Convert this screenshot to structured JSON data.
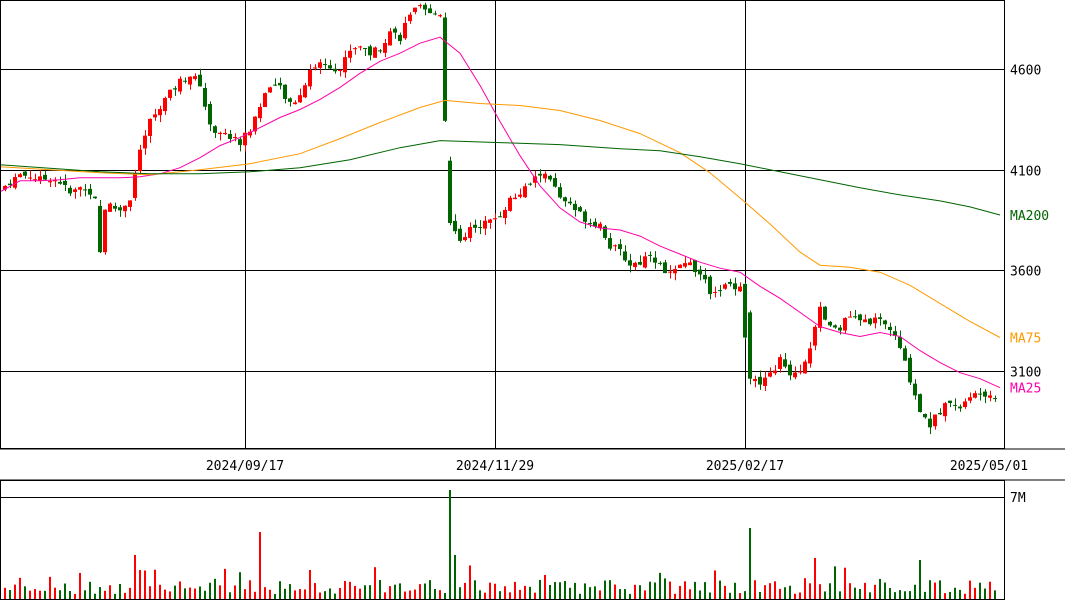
{
  "chart_data": [
    {
      "type": "candlestick",
      "panel": "price",
      "x_labels": [
        "2024/09/17",
        "2024/11/29",
        "2025/02/17",
        "2025/05/01"
      ],
      "y_ticks": [
        4600,
        4100,
        3600,
        3100
      ],
      "ylim": [
        2715,
        4940
      ],
      "grid": true,
      "colors": {
        "up": "#ff0000",
        "down": "#006400"
      },
      "series": [
        {
          "name": "MA25",
          "color": "#ff00aa",
          "values": [
            [
              0,
              3990
            ],
            [
              20,
              4045
            ],
            [
              40,
              4045
            ],
            [
              60,
              4050
            ],
            [
              80,
              4060
            ],
            [
              100,
              4060
            ],
            [
              120,
              4060
            ],
            [
              140,
              4065
            ],
            [
              160,
              4080
            ],
            [
              180,
              4110
            ],
            [
              200,
              4160
            ],
            [
              220,
              4220
            ],
            [
              240,
              4260
            ],
            [
              260,
              4310
            ],
            [
              280,
              4360
            ],
            [
              300,
              4400
            ],
            [
              320,
              4450
            ],
            [
              340,
              4510
            ],
            [
              360,
              4580
            ],
            [
              380,
              4640
            ],
            [
              400,
              4680
            ],
            [
              420,
              4730
            ],
            [
              440,
              4760
            ],
            [
              460,
              4680
            ],
            [
              480,
              4520
            ],
            [
              500,
              4340
            ],
            [
              520,
              4170
            ],
            [
              540,
              4020
            ],
            [
              560,
              3910
            ],
            [
              580,
              3840
            ],
            [
              600,
              3810
            ],
            [
              620,
              3800
            ],
            [
              640,
              3770
            ],
            [
              660,
              3720
            ],
            [
              680,
              3680
            ],
            [
              700,
              3640
            ],
            [
              720,
              3610
            ],
            [
              740,
              3590
            ],
            [
              760,
              3520
            ],
            [
              780,
              3460
            ],
            [
              800,
              3390
            ],
            [
              820,
              3320
            ],
            [
              840,
              3290
            ],
            [
              860,
              3270
            ],
            [
              880,
              3290
            ],
            [
              900,
              3270
            ],
            [
              920,
              3200
            ],
            [
              940,
              3140
            ],
            [
              960,
              3090
            ],
            [
              980,
              3060
            ],
            [
              1000,
              3015
            ]
          ]
        },
        {
          "name": "MA75",
          "color": "#ff9900",
          "values": [
            [
              0,
              4115
            ],
            [
              100,
              4085
            ],
            [
              150,
              4075
            ],
            [
              200,
              4100
            ],
            [
              250,
              4130
            ],
            [
              300,
              4180
            ],
            [
              340,
              4255
            ],
            [
              380,
              4335
            ],
            [
              420,
              4410
            ],
            [
              445,
              4445
            ],
            [
              480,
              4430
            ],
            [
              520,
              4420
            ],
            [
              560,
              4395
            ],
            [
              600,
              4345
            ],
            [
              640,
              4280
            ],
            [
              680,
              4185
            ],
            [
              710,
              4085
            ],
            [
              740,
              3960
            ],
            [
              770,
              3830
            ],
            [
              800,
              3690
            ],
            [
              820,
              3625
            ],
            [
              850,
              3615
            ],
            [
              880,
              3590
            ],
            [
              910,
              3525
            ],
            [
              940,
              3435
            ],
            [
              970,
              3345
            ],
            [
              1000,
              3265
            ]
          ]
        },
        {
          "name": "MA200",
          "color": "#006400",
          "values": [
            [
              0,
              4125
            ],
            [
              100,
              4090
            ],
            [
              150,
              4080
            ],
            [
              200,
              4080
            ],
            [
              250,
              4090
            ],
            [
              300,
              4110
            ],
            [
              350,
              4150
            ],
            [
              400,
              4210
            ],
            [
              440,
              4245
            ],
            [
              500,
              4235
            ],
            [
              560,
              4225
            ],
            [
              620,
              4205
            ],
            [
              660,
              4195
            ],
            [
              700,
              4165
            ],
            [
              740,
              4130
            ],
            [
              780,
              4090
            ],
            [
              820,
              4050
            ],
            [
              860,
              4010
            ],
            [
              900,
              3975
            ],
            [
              940,
              3945
            ],
            [
              970,
              3915
            ],
            [
              1000,
              3875
            ]
          ]
        }
      ]
    },
    {
      "type": "bar",
      "panel": "volume",
      "y_ticks": [
        "7M"
      ],
      "up_color": "#ff0000",
      "down_color": "#006400"
    }
  ]
}
